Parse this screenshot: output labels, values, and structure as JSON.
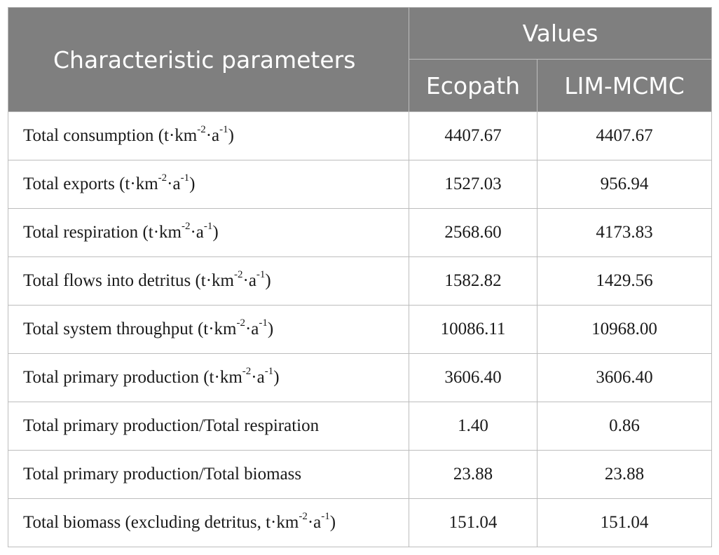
{
  "table": {
    "header": {
      "param_label": "Characteristic parameters",
      "values_label": "Values",
      "col_ecopath": "Ecopath",
      "col_lim": "LIM-MCMC"
    },
    "unit": {
      "open": "(t·km",
      "exp1": "-2",
      "mid": "·a",
      "exp2": "-1",
      "close": ")"
    },
    "rows": [
      {
        "label": "Total consumption",
        "has_unit": true,
        "ecopath": "4407.67",
        "lim": "4407.67"
      },
      {
        "label": "Total exports",
        "has_unit": true,
        "ecopath": "1527.03",
        "lim": "956.94"
      },
      {
        "label": "Total respiration",
        "has_unit": true,
        "ecopath": "2568.60",
        "lim": "4173.83"
      },
      {
        "label": "Total flows into detritus",
        "has_unit": true,
        "ecopath": "1582.82",
        "lim": "1429.56"
      },
      {
        "label": "Total system throughput",
        "has_unit": true,
        "ecopath": "10086.11",
        "lim": "10968.00"
      },
      {
        "label": "Total primary production",
        "has_unit": true,
        "ecopath": "3606.40",
        "lim": "3606.40"
      },
      {
        "label": "Total primary production/Total respiration",
        "has_unit": false,
        "ecopath": "1.40",
        "lim": "0.86"
      },
      {
        "label": "Total primary production/Total biomass",
        "has_unit": false,
        "ecopath": "23.88",
        "lim": "23.88"
      },
      {
        "label": "Total biomass",
        "has_unit": false,
        "ecopath": "151.04",
        "lim": "151.04"
      }
    ],
    "biomass_unit": {
      "open": "(excluding detritus, t·km",
      "exp1": "-2",
      "mid": "·a",
      "exp2": "-1",
      "close": ")"
    }
  }
}
